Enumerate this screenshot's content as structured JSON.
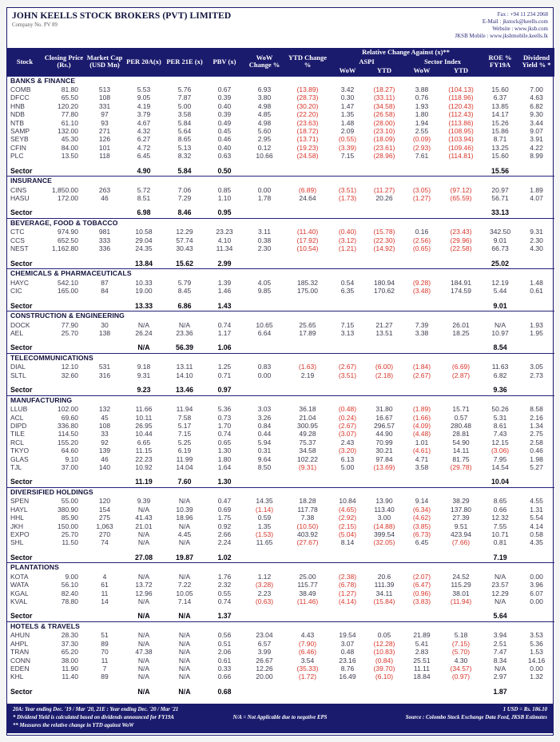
{
  "header": {
    "title": "JOHN KEELLS STOCK BROKERS (PVT) LIMITED",
    "company_no": "Company No. PV 89",
    "contacts": [
      "Fax : +94 11 234 2068",
      "E-Mail : jkstock@keells.com",
      "Website : www.jksb.com",
      "JKSB Mobile : www.jksbmobile.keells.lk"
    ]
  },
  "table": {
    "columns": {
      "stock": "Stock",
      "price": "Closing Price (Rs.)",
      "mcap": "Market Cap (USD Mn)",
      "per20a": "PER 20A(x)",
      "per21e": "PER 21E (x)",
      "pbv": "PBV (x)",
      "wow": "WoW Change %",
      "ytd": "YTD Change %",
      "relative": "Relative Change Against (x)**",
      "aspi": "ASPI",
      "sector_index": "Sector Index",
      "wow_sub": "WoW",
      "ytd_sub": "YTD",
      "roe": "ROE % FY19A",
      "dy": "Dividend Yield % *"
    },
    "sector_label": "Sector",
    "sections": [
      {
        "name": "BANKS & FINANCE",
        "rows": [
          [
            "COMB",
            "81.80",
            "513",
            "5.53",
            "5.76",
            "0.67",
            "6.93",
            "(13.89)",
            "3.42",
            "(18.27)",
            "3.88",
            "(104.13)",
            "15.60",
            "7.00"
          ],
          [
            "DFCC",
            "65.50",
            "108",
            "9.05",
            "7.87",
            "0.39",
            "3.80",
            "(28.73)",
            "0.30",
            "(33.11)",
            "0.76",
            "(118.96)",
            "6.37",
            "4.63"
          ],
          [
            "HNB",
            "120.20",
            "331",
            "4.19",
            "5.00",
            "0.40",
            "4.98",
            "(30.20)",
            "1.47",
            "(34.58)",
            "1.93",
            "(120.43)",
            "13.85",
            "6.82"
          ],
          [
            "NDB",
            "77.80",
            "97",
            "3.79",
            "3.58",
            "0.39",
            "4.85",
            "(22.20)",
            "1.35",
            "(26.58)",
            "1.80",
            "(112.43)",
            "14.17",
            "9.30"
          ],
          [
            "NTB",
            "61.10",
            "93",
            "4.67",
            "5.84",
            "0.49",
            "4.98",
            "(23.63)",
            "1.48",
            "(28.00)",
            "1.94",
            "(113.86)",
            "15.26",
            "3.44"
          ],
          [
            "SAMP",
            "132.00",
            "271",
            "4.32",
            "5.64",
            "0.45",
            "5.60",
            "(18.72)",
            "2.09",
            "(23.10)",
            "2.55",
            "(108.95)",
            "15.86",
            "9.07"
          ],
          [
            "SEYB",
            "45.30",
            "126",
            "6.27",
            "8.65",
            "0.46",
            "2.95",
            "(13.71)",
            "(0.55)",
            "(18.09)",
            "(0.09)",
            "(103.94)",
            "8.71",
            "3.91"
          ],
          [
            "CFIN",
            "84.00",
            "101",
            "4.72",
            "5.13",
            "0.40",
            "0.12",
            "(19.23)",
            "(3.39)",
            "(23.61)",
            "(2.93)",
            "(109.46)",
            "13.25",
            "4.22"
          ],
          [
            "PLC",
            "13.50",
            "118",
            "6.45",
            "8.32",
            "0.63",
            "10.66",
            "(24.58)",
            "7.15",
            "(28.96)",
            "7.61",
            "(114.81)",
            "15.60",
            "8.99"
          ]
        ],
        "sector": {
          "per20a": "4.90",
          "per21e": "5.84",
          "pbv": "0.50",
          "roe": "15.56"
        }
      },
      {
        "name": "INSURANCE",
        "rows": [
          [
            "CINS",
            "1,850.00",
            "263",
            "5.72",
            "7.06",
            "0.85",
            "0.00",
            "(6.89)",
            "(3.51)",
            "(11.27)",
            "(3.05)",
            "(97.12)",
            "20.97",
            "1.89"
          ],
          [
            "HASU",
            "172.00",
            "46",
            "8.51",
            "7.29",
            "1.10",
            "1.78",
            "24.64",
            "(1.73)",
            "20.26",
            "(1.27)",
            "(65.59)",
            "56.71",
            "4.07"
          ]
        ],
        "sector": {
          "per20a": "6.98",
          "per21e": "8.46",
          "pbv": "0.95",
          "roe": "33.13"
        }
      },
      {
        "name": "BEVERAGE, FOOD & TOBACCO",
        "rows": [
          [
            "CTC",
            "974.90",
            "981",
            "10.58",
            "12.29",
            "23.23",
            "3.11",
            "(11.40)",
            "(0.40)",
            "(15.78)",
            "0.16",
            "(23.43)",
            "342.50",
            "9.31"
          ],
          [
            "CCS",
            "652.50",
            "333",
            "29.04",
            "57.74",
            "4.10",
            "0.38",
            "(17.92)",
            "(3.12)",
            "(22.30)",
            "(2.56)",
            "(29.96)",
            "9.01",
            "2.30"
          ],
          [
            "NEST",
            "1,162.80",
            "336",
            "24.35",
            "30.43",
            "11.34",
            "2.30",
            "(10.54)",
            "(1.21)",
            "(14.92)",
            "(0.65)",
            "(22.58)",
            "66.73",
            "4.30"
          ]
        ],
        "sector": {
          "per20a": "13.84",
          "per21e": "15.62",
          "pbv": "2.99",
          "roe": "25.02"
        }
      },
      {
        "name": "CHEMICALS & PHARMACEUTICALS",
        "rows": [
          [
            "HAYC",
            "542.10",
            "87",
            "10.33",
            "5.79",
            "1.39",
            "4.05",
            "185.32",
            "0.54",
            "180.94",
            "(9.28)",
            "184.91",
            "12.19",
            "1.48"
          ],
          [
            "CIC",
            "165.00",
            "84",
            "19.00",
            "8.45",
            "1.46",
            "9.85",
            "175.00",
            "6.35",
            "170.62",
            "(3.48)",
            "174.59",
            "5.44",
            "0.61"
          ]
        ],
        "sector": {
          "per20a": "13.33",
          "per21e": "6.86",
          "pbv": "1.43",
          "roe": "9.01"
        }
      },
      {
        "name": "CONSTRUCTION & ENGINEERING",
        "rows": [
          [
            "DOCK",
            "77.90",
            "30",
            "N/A",
            "N/A",
            "0.74",
            "10.65",
            "25.65",
            "7.15",
            "21.27",
            "7.39",
            "26.01",
            "N/A",
            "1.93"
          ],
          [
            "AEL",
            "25.70",
            "138",
            "26.24",
            "23.36",
            "1.17",
            "6.64",
            "17.89",
            "3.13",
            "13.51",
            "3.38",
            "18.25",
            "10.97",
            "1.95"
          ]
        ],
        "sector": {
          "per20a": "N/A",
          "per21e": "56.39",
          "pbv": "1.06",
          "roe": "8.54"
        }
      },
      {
        "name": "TELECOMMUNICATIONS",
        "rows": [
          [
            "DIAL",
            "12.10",
            "531",
            "9.18",
            "13.11",
            "1.25",
            "0.83",
            "(1.63)",
            "(2.67)",
            "(6.00)",
            "(1.84)",
            "(6.69)",
            "11.63",
            "3.05"
          ],
          [
            "SLTL",
            "32.60",
            "316",
            "9.31",
            "14.10",
            "0.71",
            "0.00",
            "2.19",
            "(3.51)",
            "(2.18)",
            "(2.67)",
            "(2.87)",
            "6.82",
            "2.73"
          ]
        ],
        "sector": {
          "per20a": "9.23",
          "per21e": "13.46",
          "pbv": "0.97",
          "roe": "9.36"
        }
      },
      {
        "name": "MANUFACTURING",
        "rows": [
          [
            "LLUB",
            "102.00",
            "132",
            "11.66",
            "11.94",
            "5.36",
            "3.03",
            "36.18",
            "(0.48)",
            "31.80",
            "(1.89)",
            "15.71",
            "50.26",
            "8.58"
          ],
          [
            "ACL",
            "69.60",
            "45",
            "10.11",
            "7.58",
            "0.73",
            "3.26",
            "21.04",
            "(0.24)",
            "16.67",
            "(1.66)",
            "0.57",
            "5.31",
            "2.16"
          ],
          [
            "DIPD",
            "336.80",
            "108",
            "26.95",
            "5.17",
            "1.70",
            "0.84",
            "300.95",
            "(2.67)",
            "296.57",
            "(4.09)",
            "280.48",
            "8.61",
            "1.34"
          ],
          [
            "TILE",
            "114.50",
            "33",
            "10.44",
            "7.15",
            "0.74",
            "0.44",
            "49.28",
            "(3.07)",
            "44.90",
            "(4.48)",
            "28.81",
            "7.43",
            "2.75"
          ],
          [
            "RCL",
            "155.20",
            "92",
            "6.65",
            "5.25",
            "0.65",
            "5.94",
            "75.37",
            "2.43",
            "70.99",
            "1.01",
            "54.90",
            "12.15",
            "2.58"
          ],
          [
            "TKYO",
            "64.60",
            "139",
            "11.15",
            "6.19",
            "1.30",
            "0.31",
            "34.58",
            "(3.20)",
            "30.21",
            "(4.61)",
            "14.11",
            "(3.06)",
            "0.46"
          ],
          [
            "GLAS",
            "9.10",
            "46",
            "22.23",
            "11.99",
            "1.80",
            "9.64",
            "102.22",
            "6.13",
            "97.84",
            "4.71",
            "81.75",
            "7.95",
            "1.98"
          ],
          [
            "TJL",
            "37.00",
            "140",
            "10.92",
            "14.04",
            "1.64",
            "8.50",
            "(9.31)",
            "5.00",
            "(13.69)",
            "3.58",
            "(29.78)",
            "14.54",
            "5.27"
          ]
        ],
        "sector": {
          "per20a": "11.19",
          "per21e": "7.60",
          "pbv": "1.30",
          "roe": "10.04"
        }
      },
      {
        "name": "DIVERSIFIED HOLDINGS",
        "rows": [
          [
            "SPEN",
            "55.00",
            "120",
            "9.39",
            "N/A",
            "0.47",
            "14.35",
            "18.28",
            "10.84",
            "13.90",
            "9.14",
            "38.29",
            "8.65",
            "4.55"
          ],
          [
            "HAYL",
            "380.90",
            "154",
            "N/A",
            "10.39",
            "0.69",
            "(1.14)",
            "117.78",
            "(4.65)",
            "113.40",
            "(6.34)",
            "137.80",
            "0.66",
            "1.31"
          ],
          [
            "HHL",
            "85.90",
            "275",
            "41.43",
            "18.96",
            "1.75",
            "0.59",
            "7.38",
            "(2.92)",
            "3.00",
            "(4.62)",
            "27.39",
            "12.32",
            "5.54"
          ],
          [
            "JKH",
            "150.00",
            "1,063",
            "21.01",
            "N/A",
            "0.92",
            "1.35",
            "(10.50)",
            "(2.15)",
            "(14.88)",
            "(3.85)",
            "9.51",
            "7.55",
            "4.14"
          ],
          [
            "EXPO",
            "25.70",
            "270",
            "N/A",
            "4.45",
            "2.66",
            "(1.53)",
            "403.92",
            "(5.04)",
            "399.54",
            "(6.73)",
            "423.94",
            "10.71",
            "0.58"
          ],
          [
            "SHL",
            "11.50",
            "74",
            "N/A",
            "N/A",
            "2.24",
            "11.65",
            "(27.67)",
            "8.14",
            "(32.05)",
            "6.45",
            "(7.66)",
            "0.81",
            "4.35"
          ]
        ],
        "sector": {
          "per20a": "27.08",
          "per21e": "19.87",
          "pbv": "1.02",
          "roe": "7.19"
        }
      },
      {
        "name": "PLANTATIONS",
        "rows": [
          [
            "KOTA",
            "9.00",
            "4",
            "N/A",
            "N/A",
            "1.76",
            "1.12",
            "25.00",
            "(2.38)",
            "20.6",
            "(2.07)",
            "24.52",
            "N/A",
            "0.00"
          ],
          [
            "WATA",
            "56.10",
            "61",
            "13.72",
            "7.22",
            "2.32",
            "(3.28)",
            "115.77",
            "(6.78)",
            "111.39",
            "(6.47)",
            "115.29",
            "23.57",
            "3.96"
          ],
          [
            "KGAL",
            "82.40",
            "11",
            "12.96",
            "10.05",
            "0.55",
            "2.23",
            "38.49",
            "(1.27)",
            "34.11",
            "(0.96)",
            "38.01",
            "12.29",
            "6.07"
          ],
          [
            "KVAL",
            "78.80",
            "14",
            "N/A",
            "7.14",
            "0.74",
            "(0.63)",
            "(11.46)",
            "(4.14)",
            "(15.84)",
            "(3.83)",
            "(11.94)",
            "N/A",
            "0.00"
          ]
        ],
        "sector": {
          "per20a": "N/A",
          "per21e": "N/A",
          "pbv": "1.37",
          "roe": "5.64"
        }
      },
      {
        "name": "HOTELS & TRAVELS",
        "rows": [
          [
            "AHUN",
            "28.30",
            "51",
            "N/A",
            "N/A",
            "0.56",
            "23.04",
            "4.43",
            "19.54",
            "0.05",
            "21.89",
            "5.18",
            "3.94",
            "3.53"
          ],
          [
            "AHPL",
            "37.30",
            "89",
            "N/A",
            "N/A",
            "0.51",
            "6.57",
            "(7.90)",
            "3.07",
            "(12.28)",
            "5.41",
            "(7.15)",
            "2.51",
            "5.36"
          ],
          [
            "TRAN",
            "65.20",
            "70",
            "47.38",
            "N/A",
            "2.06",
            "3.99",
            "(6.46)",
            "0.48",
            "(10.83)",
            "2.83",
            "(5.70)",
            "7.47",
            "1.53"
          ],
          [
            "CONN",
            "38.00",
            "11",
            "N/A",
            "N/A",
            "0.61",
            "26.67",
            "3.54",
            "23.16",
            "(0.84)",
            "25.51",
            "4.30",
            "8.34",
            "14.16"
          ],
          [
            "EDEN",
            "11.90",
            "7",
            "N/A",
            "N/A",
            "0.33",
            "12.26",
            "(35.33)",
            "8.76",
            "(39.70)",
            "11.11",
            "(34.57)",
            "N/A",
            "0.00"
          ],
          [
            "KHL",
            "11.40",
            "89",
            "N/A",
            "N/A",
            "0.66",
            "20.00",
            "(1.72)",
            "16.49",
            "(6.10)",
            "18.84",
            "(0.97)",
            "2.97",
            "1.32"
          ]
        ],
        "sector": {
          "per20a": "N/A",
          "per21e": "N/A",
          "pbv": "0.68",
          "roe": "1.87"
        }
      }
    ]
  },
  "footer": {
    "notes": [
      "20A: Year ending Dec. '19 / Mar '20, 21E : Year ending Dec. '20 / Mar '21",
      "* Dividend Yield is calculated based on dividends announced for FY19A",
      "** Measures the relative change in YTD against WoW"
    ],
    "usd_rate": "1 USD = Rs.  186.10",
    "na_note": "N/A = Not Applicable due to negative EPS",
    "source": "Source : Colombo Stock Exchange Data Feed, JKSB Estimates"
  },
  "colors": {
    "navy": "#1b1b6e",
    "negative_red": "#d8352a"
  }
}
